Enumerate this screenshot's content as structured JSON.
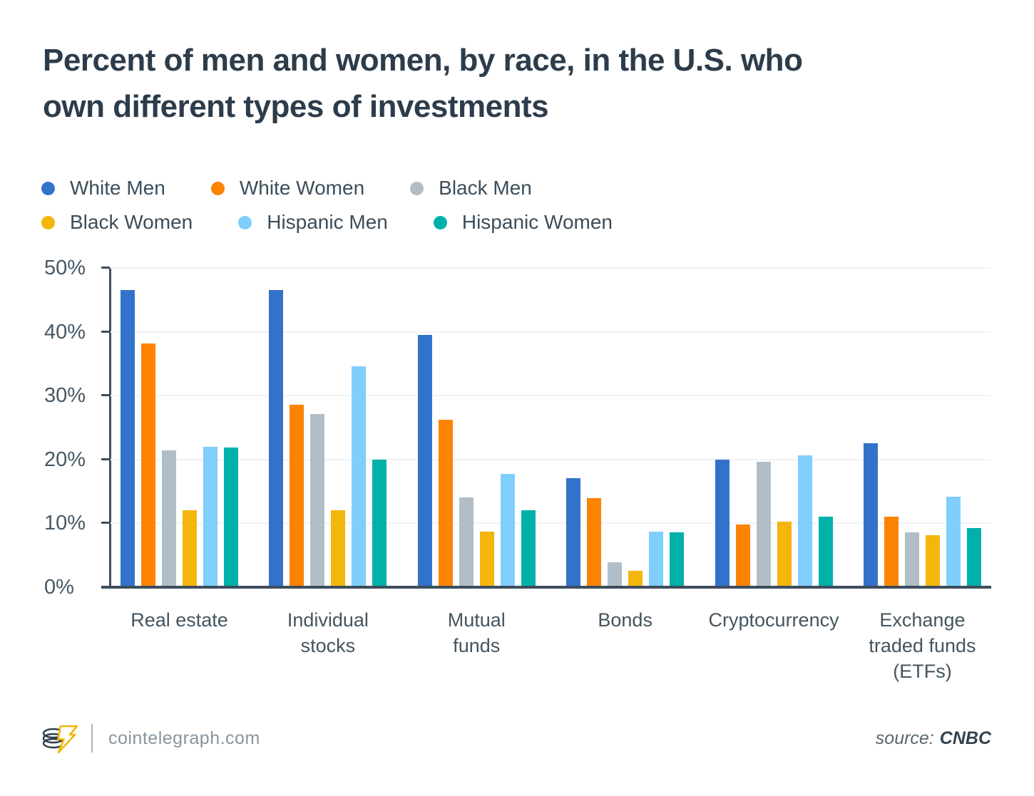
{
  "header": {
    "title_line1": "Percent of men and women, by race, in the U.S. who",
    "title_line2": "own different types of investments"
  },
  "chart_data": {
    "type": "bar",
    "title": "Percent of men and women, by race, in the U.S. who own different types of investments",
    "categories": [
      "Real estate",
      "Individual\nstocks",
      "Mutual\nfunds",
      "Bonds",
      "Cryptocurrency",
      "Exchange\ntraded funds\n(ETFs)"
    ],
    "series": [
      {
        "name": "White Men",
        "color": "#3372cb",
        "values": [
          46.5,
          46.5,
          39.5,
          17.1,
          20.0,
          22.5
        ]
      },
      {
        "name": "White Women",
        "color": "#fd8302",
        "values": [
          38.2,
          28.6,
          26.2,
          14.0,
          9.8,
          11.0
        ]
      },
      {
        "name": "Black Men",
        "color": "#b1bec7",
        "values": [
          21.4,
          27.1,
          14.1,
          3.9,
          19.6,
          8.6
        ]
      },
      {
        "name": "Black Women",
        "color": "#f4b60a",
        "values": [
          12.0,
          12.0,
          8.7,
          2.6,
          10.3,
          8.2
        ]
      },
      {
        "name": "Hispanic Men",
        "color": "#7fcefb",
        "values": [
          22.0,
          34.6,
          17.8,
          8.7,
          20.6,
          14.2
        ]
      },
      {
        "name": "Hispanic Women",
        "color": "#00b1a9",
        "values": [
          21.9,
          20.0,
          12.0,
          8.6,
          11.0,
          9.3
        ]
      }
    ],
    "xlabel": "",
    "ylabel": "",
    "ylim": [
      0,
      50
    ],
    "yticks": [
      "0%",
      "10%",
      "20%",
      "30%",
      "40%",
      "50%"
    ],
    "grid": true,
    "legend_position": "top-left, two rows"
  },
  "colors": {
    "title": "#2d3c4b",
    "axis": "#3e4d5c",
    "gridline": "#f1f2f4",
    "logo_accent": "#f4b60a"
  },
  "footer": {
    "site": "cointelegraph.com",
    "source_label": "source:",
    "source_value": "CNBC"
  }
}
